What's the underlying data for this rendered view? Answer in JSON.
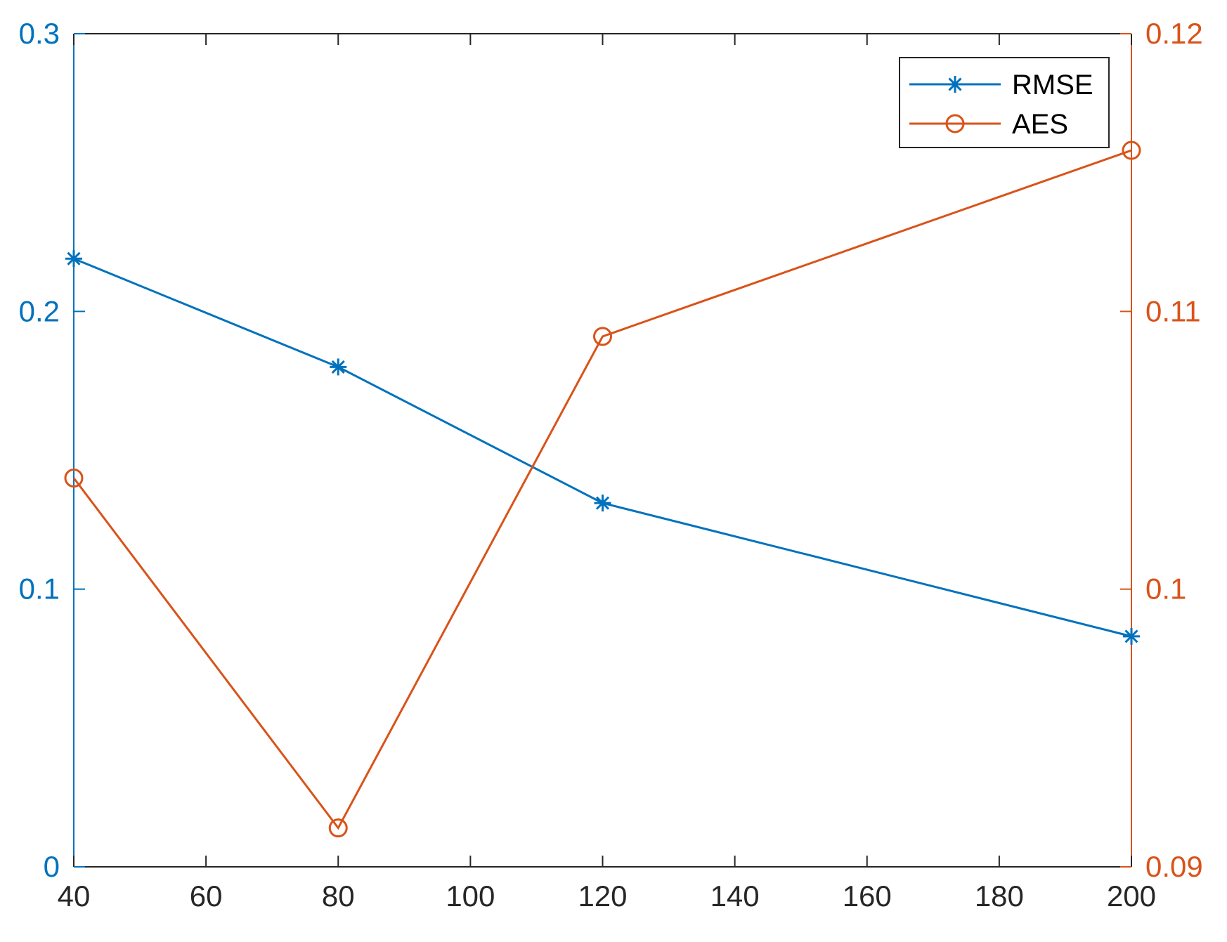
{
  "chart_data": {
    "type": "line",
    "title": "",
    "xlabel": "",
    "ylabel_left": "",
    "ylabel_right": "",
    "x": [
      40,
      80,
      120,
      200
    ],
    "xlim": [
      40,
      200
    ],
    "xticks": [
      40,
      60,
      80,
      100,
      120,
      140,
      160,
      180,
      200
    ],
    "y_left": {
      "lim": [
        0,
        0.3
      ],
      "ticks": [
        0,
        0.1,
        0.2,
        0.3
      ],
      "tick_labels": [
        "0",
        "0.1",
        "0.2",
        "0.3"
      ],
      "color": "#0072BD"
    },
    "y_right": {
      "lim": [
        0.09,
        0.12
      ],
      "ticks": [
        0.09,
        0.1,
        0.11,
        0.12
      ],
      "tick_labels": [
        "0.09",
        "0.1",
        "0.11",
        "0.12"
      ],
      "color": "#D95319"
    },
    "series": [
      {
        "name": "RMSE",
        "axis": "left",
        "marker": "asterisk",
        "color": "#0072BD",
        "values": [
          0.219,
          0.18,
          0.131,
          0.083
        ]
      },
      {
        "name": "AES",
        "axis": "right",
        "marker": "circle",
        "color": "#D95319",
        "values": [
          0.104,
          0.0914,
          0.1091,
          0.1158
        ]
      }
    ],
    "legend_position": "top-right",
    "grid": false
  }
}
